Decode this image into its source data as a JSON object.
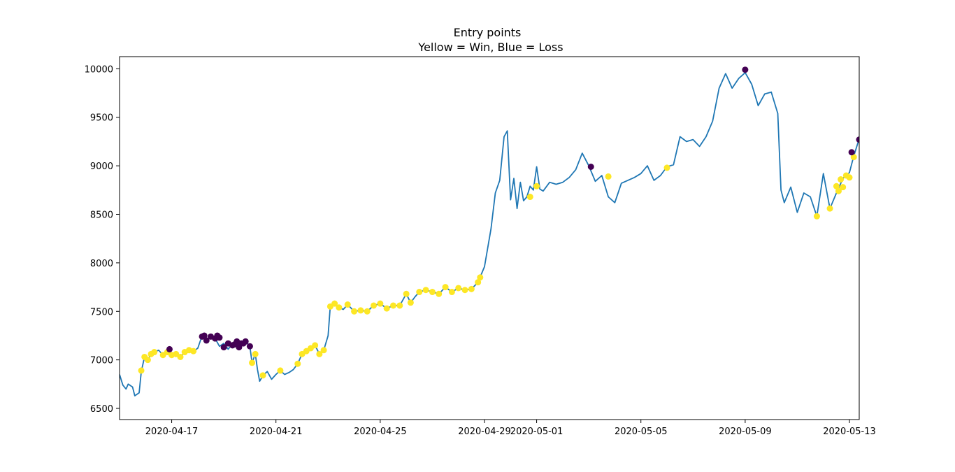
{
  "chart_data": {
    "type": "line",
    "title": "Entry points",
    "subtitle": "Yellow = Win, Blue = Loss",
    "xlabel": "",
    "ylabel": "",
    "xlim": [
      "2020-04-15",
      "2020-05-13T09:00"
    ],
    "ylim": [
      6385,
      10125
    ],
    "grid": false,
    "x_ticks": [
      "2020-04-17",
      "2020-04-21",
      "2020-04-25",
      "2020-04-29",
      "2020-05-01",
      "2020-05-05",
      "2020-05-09",
      "2020-05-13"
    ],
    "y_ticks": [
      6500,
      7000,
      7500,
      8000,
      8500,
      9000,
      9500,
      10000
    ],
    "colors": {
      "line": "#1f77b4",
      "win": "#fde725",
      "loss": "#440154"
    },
    "series": [
      {
        "values": [
          [
            "2020-04-15T00:00",
            6850
          ],
          [
            "2020-04-15T03:00",
            6740
          ],
          [
            "2020-04-15T06:00",
            6700
          ],
          [
            "2020-04-15T08:00",
            6750
          ],
          [
            "2020-04-15T12:00",
            6720
          ],
          [
            "2020-04-15T14:00",
            6630
          ],
          [
            "2020-04-15T18:00",
            6660
          ],
          [
            "2020-04-15T20:00",
            6880
          ],
          [
            "2020-04-15T23:00",
            7030
          ],
          [
            "2020-04-16T02:00",
            7000
          ],
          [
            "2020-04-16T05:00",
            7060
          ],
          [
            "2020-04-16T08:00",
            7080
          ],
          [
            "2020-04-16T12:00",
            7100
          ],
          [
            "2020-04-16T16:00",
            7050
          ],
          [
            "2020-04-16T20:00",
            7080
          ],
          [
            "2020-04-17T00:00",
            7050
          ],
          [
            "2020-04-17T04:00",
            7060
          ],
          [
            "2020-04-17T08:00",
            7030
          ],
          [
            "2020-04-17T12:00",
            7080
          ],
          [
            "2020-04-17T16:00",
            7100
          ],
          [
            "2020-04-17T20:00",
            7090
          ],
          [
            "2020-04-18T00:00",
            7120
          ],
          [
            "2020-04-18T04:00",
            7250
          ],
          [
            "2020-04-18T08:00",
            7200
          ],
          [
            "2020-04-18T12:00",
            7240
          ],
          [
            "2020-04-18T16:00",
            7220
          ],
          [
            "2020-04-18T20:00",
            7140
          ],
          [
            "2020-04-19T00:00",
            7170
          ],
          [
            "2020-04-19T04:00",
            7110
          ],
          [
            "2020-04-19T08:00",
            7170
          ],
          [
            "2020-04-19T12:00",
            7130
          ],
          [
            "2020-04-19T16:00",
            7170
          ],
          [
            "2020-04-19T20:00",
            7190
          ],
          [
            "2020-04-20T00:00",
            7140
          ],
          [
            "2020-04-20T02:00",
            6970
          ],
          [
            "2020-04-20T05:00",
            7060
          ],
          [
            "2020-04-20T07:00",
            6900
          ],
          [
            "2020-04-20T09:00",
            6780
          ],
          [
            "2020-04-20T12:00",
            6840
          ],
          [
            "2020-04-20T16:00",
            6880
          ],
          [
            "2020-04-20T20:00",
            6800
          ],
          [
            "2020-04-21T00:00",
            6850
          ],
          [
            "2020-04-21T04:00",
            6890
          ],
          [
            "2020-04-21T08:00",
            6850
          ],
          [
            "2020-04-21T12:00",
            6870
          ],
          [
            "2020-04-21T16:00",
            6900
          ],
          [
            "2020-04-21T20:00",
            6960
          ],
          [
            "2020-04-22T00:00",
            7060
          ],
          [
            "2020-04-22T04:00",
            7090
          ],
          [
            "2020-04-22T08:00",
            7120
          ],
          [
            "2020-04-22T12:00",
            7150
          ],
          [
            "2020-04-22T16:00",
            7060
          ],
          [
            "2020-04-22T20:00",
            7100
          ],
          [
            "2020-04-23T00:00",
            7250
          ],
          [
            "2020-04-23T02:00",
            7550
          ],
          [
            "2020-04-23T06:00",
            7580
          ],
          [
            "2020-04-23T10:00",
            7540
          ],
          [
            "2020-04-23T14:00",
            7520
          ],
          [
            "2020-04-23T18:00",
            7570
          ],
          [
            "2020-04-24T00:00",
            7500
          ],
          [
            "2020-04-24T06:00",
            7510
          ],
          [
            "2020-04-24T12:00",
            7500
          ],
          [
            "2020-04-24T18:00",
            7560
          ],
          [
            "2020-04-25T00:00",
            7580
          ],
          [
            "2020-04-25T06:00",
            7530
          ],
          [
            "2020-04-25T12:00",
            7560
          ],
          [
            "2020-04-25T18:00",
            7560
          ],
          [
            "2020-04-26T00:00",
            7680
          ],
          [
            "2020-04-26T04:00",
            7590
          ],
          [
            "2020-04-26T08:00",
            7650
          ],
          [
            "2020-04-26T12:00",
            7700
          ],
          [
            "2020-04-26T18:00",
            7720
          ],
          [
            "2020-04-27T00:00",
            7700
          ],
          [
            "2020-04-27T06:00",
            7680
          ],
          [
            "2020-04-27T12:00",
            7750
          ],
          [
            "2020-04-27T18:00",
            7700
          ],
          [
            "2020-04-28T00:00",
            7740
          ],
          [
            "2020-04-28T06:00",
            7720
          ],
          [
            "2020-04-28T12:00",
            7730
          ],
          [
            "2020-04-28T18:00",
            7800
          ],
          [
            "2020-04-29T00:00",
            7960
          ],
          [
            "2020-04-29T06:00",
            8350
          ],
          [
            "2020-04-29T10:00",
            8720
          ],
          [
            "2020-04-29T14:00",
            8850
          ],
          [
            "2020-04-29T18:00",
            9300
          ],
          [
            "2020-04-29T21:00",
            9360
          ],
          [
            "2020-04-30T00:00",
            8650
          ],
          [
            "2020-04-30T03:00",
            8870
          ],
          [
            "2020-04-30T06:00",
            8560
          ],
          [
            "2020-04-30T09:00",
            8830
          ],
          [
            "2020-04-30T12:00",
            8640
          ],
          [
            "2020-04-30T15:00",
            8680
          ],
          [
            "2020-04-30T18:00",
            8790
          ],
          [
            "2020-04-30T21:00",
            8750
          ],
          [
            "2020-05-01T00:00",
            8990
          ],
          [
            "2020-05-01T03:00",
            8760
          ],
          [
            "2020-05-01T06:00",
            8740
          ],
          [
            "2020-05-01T12:00",
            8830
          ],
          [
            "2020-05-01T18:00",
            8810
          ],
          [
            "2020-05-02T00:00",
            8830
          ],
          [
            "2020-05-02T06:00",
            8880
          ],
          [
            "2020-05-02T12:00",
            8960
          ],
          [
            "2020-05-02T18:00",
            9130
          ],
          [
            "2020-05-03T00:00",
            9000
          ],
          [
            "2020-05-03T06:00",
            8840
          ],
          [
            "2020-05-03T12:00",
            8900
          ],
          [
            "2020-05-03T18:00",
            8680
          ],
          [
            "2020-05-04T00:00",
            8620
          ],
          [
            "2020-05-04T06:00",
            8820
          ],
          [
            "2020-05-04T12:00",
            8850
          ],
          [
            "2020-05-04T18:00",
            8880
          ],
          [
            "2020-05-05T00:00",
            8920
          ],
          [
            "2020-05-05T06:00",
            9000
          ],
          [
            "2020-05-05T12:00",
            8850
          ],
          [
            "2020-05-05T18:00",
            8900
          ],
          [
            "2020-05-06T00:00",
            8990
          ],
          [
            "2020-05-06T06:00",
            9010
          ],
          [
            "2020-05-06T12:00",
            9300
          ],
          [
            "2020-05-06T18:00",
            9250
          ],
          [
            "2020-05-07T00:00",
            9270
          ],
          [
            "2020-05-07T06:00",
            9200
          ],
          [
            "2020-05-07T12:00",
            9300
          ],
          [
            "2020-05-07T18:00",
            9460
          ],
          [
            "2020-05-08T00:00",
            9800
          ],
          [
            "2020-05-08T06:00",
            9950
          ],
          [
            "2020-05-08T12:00",
            9800
          ],
          [
            "2020-05-08T18:00",
            9900
          ],
          [
            "2020-05-09T00:00",
            9960
          ],
          [
            "2020-05-09T06:00",
            9840
          ],
          [
            "2020-05-09T12:00",
            9620
          ],
          [
            "2020-05-09T18:00",
            9740
          ],
          [
            "2020-05-10T00:00",
            9760
          ],
          [
            "2020-05-10T06:00",
            9540
          ],
          [
            "2020-05-10T09:00",
            8750
          ],
          [
            "2020-05-10T12:00",
            8620
          ],
          [
            "2020-05-10T18:00",
            8780
          ],
          [
            "2020-05-11T00:00",
            8520
          ],
          [
            "2020-05-11T06:00",
            8720
          ],
          [
            "2020-05-11T12:00",
            8680
          ],
          [
            "2020-05-11T18:00",
            8480
          ],
          [
            "2020-05-12T00:00",
            8920
          ],
          [
            "2020-05-12T06:00",
            8560
          ],
          [
            "2020-05-12T12:00",
            8720
          ],
          [
            "2020-05-12T18:00",
            8870
          ],
          [
            "2020-05-13T00:00",
            8930
          ],
          [
            "2020-05-13T04:00",
            9100
          ],
          [
            "2020-05-13T09:00",
            9280
          ]
        ]
      }
    ],
    "win_points": [
      [
        "2020-04-15T20:00",
        6890
      ],
      [
        "2020-04-15T23:00",
        7030
      ],
      [
        "2020-04-16T02:00",
        7000
      ],
      [
        "2020-04-16T05:00",
        7060
      ],
      [
        "2020-04-16T08:00",
        7080
      ],
      [
        "2020-04-16T16:00",
        7050
      ],
      [
        "2020-04-16T20:00",
        7080
      ],
      [
        "2020-04-17T00:00",
        7050
      ],
      [
        "2020-04-17T04:00",
        7060
      ],
      [
        "2020-04-17T08:00",
        7030
      ],
      [
        "2020-04-17T12:00",
        7080
      ],
      [
        "2020-04-17T16:00",
        7100
      ],
      [
        "2020-04-17T20:00",
        7090
      ],
      [
        "2020-04-20T02:00",
        6970
      ],
      [
        "2020-04-20T05:00",
        7060
      ],
      [
        "2020-04-20T12:00",
        6840
      ],
      [
        "2020-04-21T04:00",
        6890
      ],
      [
        "2020-04-21T20:00",
        6960
      ],
      [
        "2020-04-22T00:00",
        7060
      ],
      [
        "2020-04-22T04:00",
        7090
      ],
      [
        "2020-04-22T08:00",
        7120
      ],
      [
        "2020-04-22T12:00",
        7150
      ],
      [
        "2020-04-22T16:00",
        7060
      ],
      [
        "2020-04-22T20:00",
        7100
      ],
      [
        "2020-04-23T02:00",
        7550
      ],
      [
        "2020-04-23T06:00",
        7580
      ],
      [
        "2020-04-23T10:00",
        7540
      ],
      [
        "2020-04-23T18:00",
        7570
      ],
      [
        "2020-04-24T00:00",
        7500
      ],
      [
        "2020-04-24T06:00",
        7510
      ],
      [
        "2020-04-24T12:00",
        7500
      ],
      [
        "2020-04-24T18:00",
        7560
      ],
      [
        "2020-04-25T00:00",
        7580
      ],
      [
        "2020-04-25T06:00",
        7530
      ],
      [
        "2020-04-25T12:00",
        7560
      ],
      [
        "2020-04-25T18:00",
        7560
      ],
      [
        "2020-04-26T00:00",
        7680
      ],
      [
        "2020-04-26T04:00",
        7590
      ],
      [
        "2020-04-26T12:00",
        7700
      ],
      [
        "2020-04-26T18:00",
        7720
      ],
      [
        "2020-04-27T00:00",
        7700
      ],
      [
        "2020-04-27T06:00",
        7680
      ],
      [
        "2020-04-27T12:00",
        7750
      ],
      [
        "2020-04-27T18:00",
        7700
      ],
      [
        "2020-04-28T00:00",
        7740
      ],
      [
        "2020-04-28T06:00",
        7720
      ],
      [
        "2020-04-28T12:00",
        7730
      ],
      [
        "2020-04-28T18:00",
        7800
      ],
      [
        "2020-04-28T20:00",
        7850
      ],
      [
        "2020-04-30T18:00",
        8680
      ],
      [
        "2020-05-01T00:00",
        8790
      ],
      [
        "2020-05-03T18:00",
        8890
      ],
      [
        "2020-05-06T00:00",
        8980
      ],
      [
        "2020-05-11T18:00",
        8480
      ],
      [
        "2020-05-12T06:00",
        8560
      ],
      [
        "2020-05-12T12:00",
        8790
      ],
      [
        "2020-05-12T14:00",
        8740
      ],
      [
        "2020-05-12T16:00",
        8860
      ],
      [
        "2020-05-12T18:00",
        8780
      ],
      [
        "2020-05-12T21:00",
        8900
      ],
      [
        "2020-05-13T00:00",
        8880
      ],
      [
        "2020-05-13T04:00",
        9090
      ]
    ],
    "loss_points": [
      [
        "2020-04-16T22:00",
        7110
      ],
      [
        "2020-04-18T04:00",
        7240
      ],
      [
        "2020-04-18T06:00",
        7250
      ],
      [
        "2020-04-18T08:00",
        7200
      ],
      [
        "2020-04-18T12:00",
        7240
      ],
      [
        "2020-04-18T16:00",
        7220
      ],
      [
        "2020-04-18T18:00",
        7250
      ],
      [
        "2020-04-18T20:00",
        7230
      ],
      [
        "2020-04-19T00:00",
        7130
      ],
      [
        "2020-04-19T04:00",
        7170
      ],
      [
        "2020-04-19T08:00",
        7150
      ],
      [
        "2020-04-19T10:00",
        7160
      ],
      [
        "2020-04-19T12:00",
        7190
      ],
      [
        "2020-04-19T14:00",
        7130
      ],
      [
        "2020-04-19T16:00",
        7170
      ],
      [
        "2020-04-19T18:00",
        7170
      ],
      [
        "2020-04-19T20:00",
        7190
      ],
      [
        "2020-04-20T00:00",
        7140
      ],
      [
        "2020-05-03T02:00",
        8990
      ],
      [
        "2020-05-09T00:00",
        9990
      ],
      [
        "2020-05-13T02:00",
        9140
      ],
      [
        "2020-05-13T09:00",
        9270
      ]
    ]
  }
}
